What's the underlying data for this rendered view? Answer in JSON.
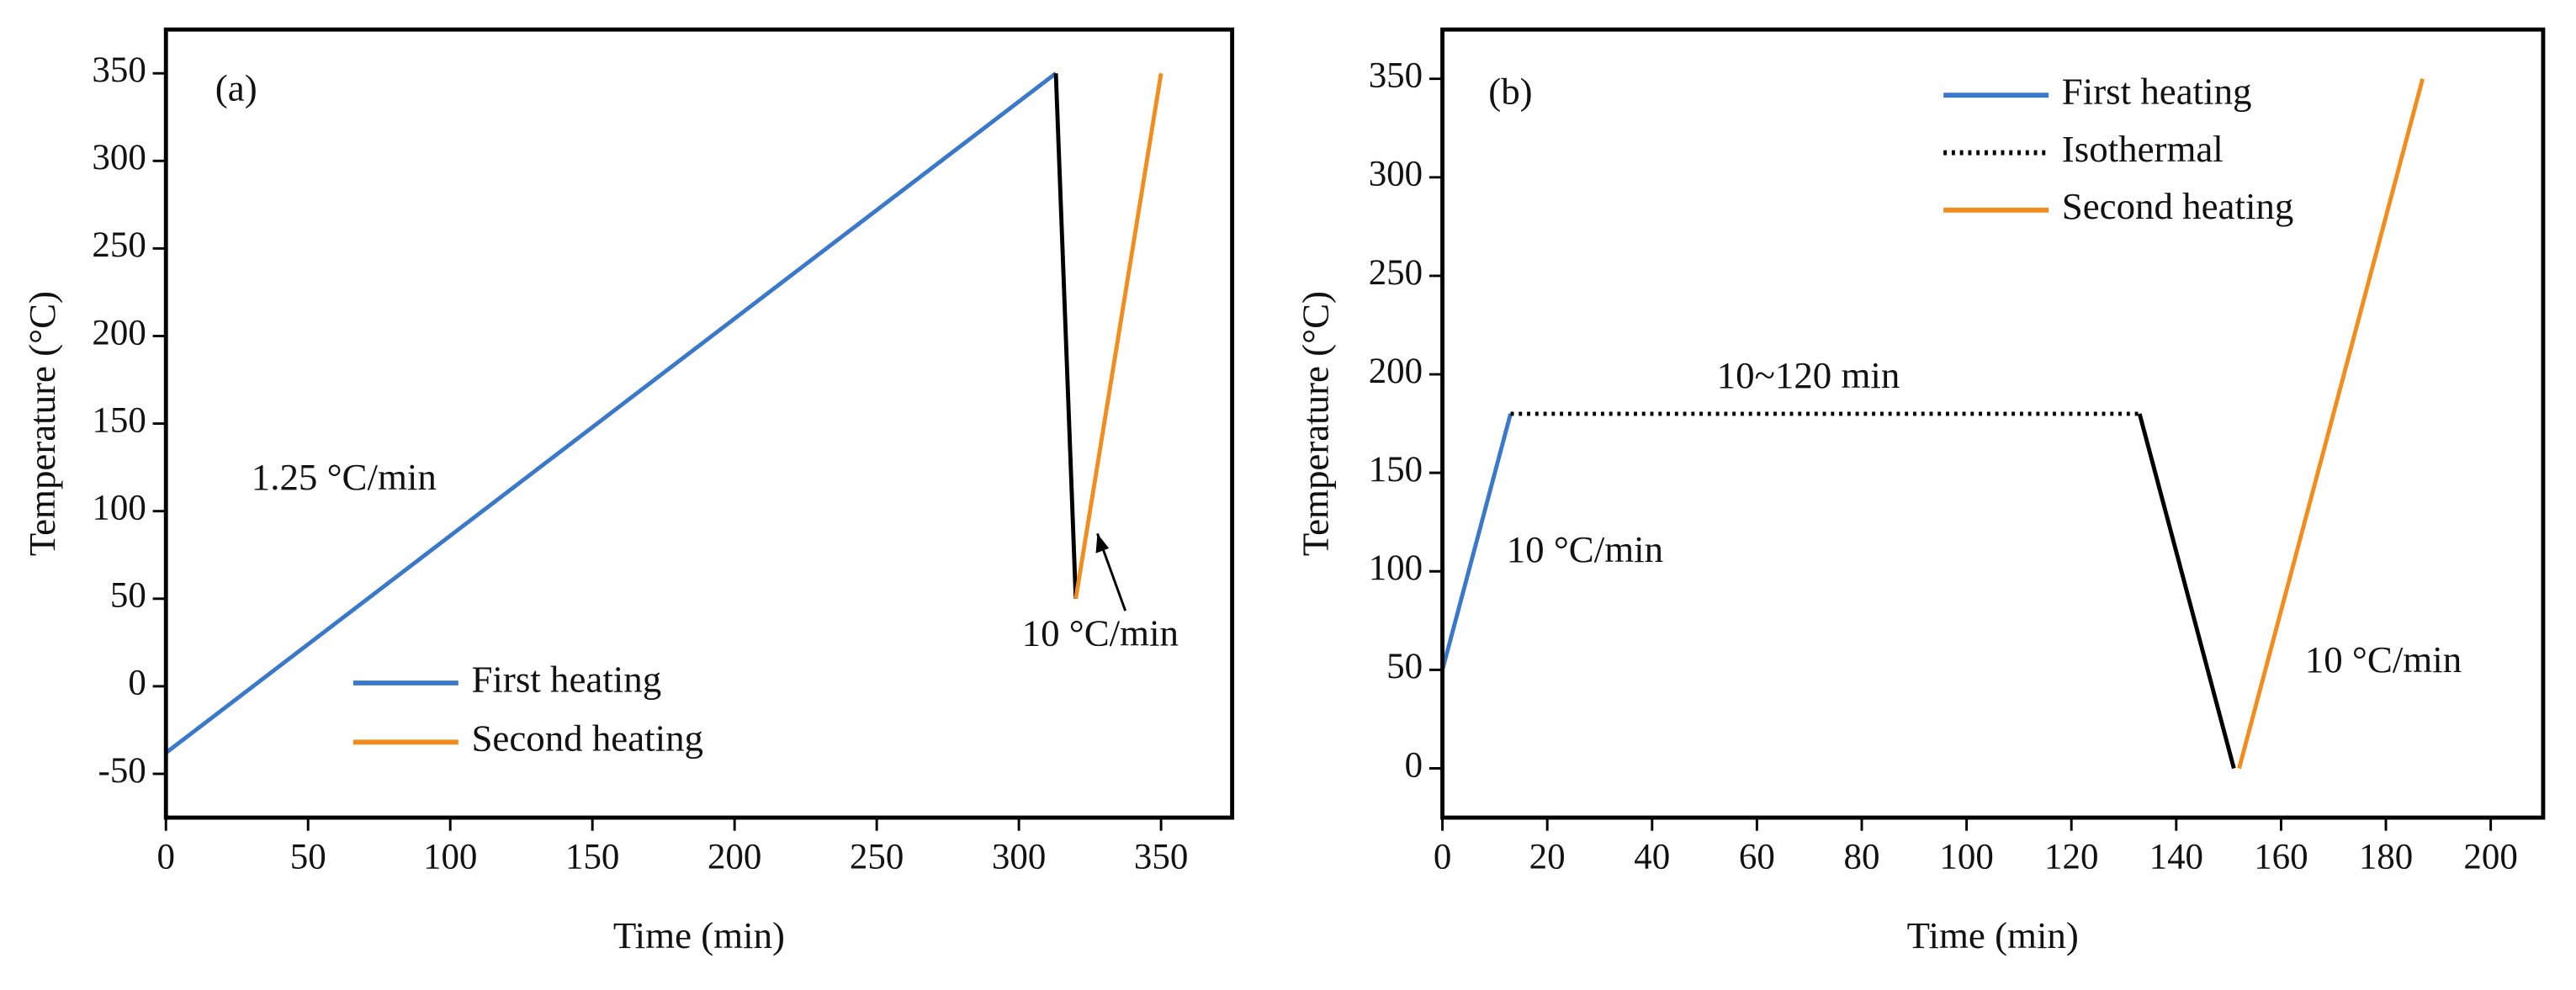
{
  "chart_data": [
    {
      "type": "line",
      "panel_label": "(a)",
      "x_label": "Time (min)",
      "y_label": "Temperature (°C)",
      "xlim": [
        0,
        375
      ],
      "xticks": [
        0,
        50,
        100,
        150,
        200,
        250,
        300,
        350
      ],
      "ylim": [
        -75,
        375
      ],
      "yticks": [
        -50,
        0,
        50,
        100,
        150,
        200,
        250,
        300,
        350
      ],
      "series": [
        {
          "name": "First heating",
          "color": "#3a78c9",
          "x": [
            0,
            313
          ],
          "values": [
            -38,
            350
          ]
        },
        {
          "color": "#000000",
          "x": [
            313,
            320
          ],
          "values": [
            350,
            50
          ]
        },
        {
          "name": "Second heating",
          "color": "#f28c1c",
          "x": [
            320,
            350
          ],
          "values": [
            50,
            350
          ]
        }
      ],
      "annotations": [
        "1.25 °C/min",
        "10 °C/min"
      ]
    },
    {
      "type": "line",
      "panel_label": "(b)",
      "x_label": "Time (min)",
      "y_label": "Temperature (°C)",
      "xlim": [
        0,
        210
      ],
      "xticks": [
        0,
        20,
        40,
        60,
        80,
        100,
        120,
        140,
        160,
        180,
        200
      ],
      "ylim": [
        -25,
        375
      ],
      "yticks": [
        0,
        50,
        100,
        150,
        200,
        250,
        300,
        350
      ],
      "series": [
        {
          "name": "First heating",
          "color": "#3a78c9",
          "x": [
            0,
            13
          ],
          "values": [
            50,
            180
          ]
        },
        {
          "name": "Isothermal",
          "color": "#000000",
          "dash": "dotted",
          "x": [
            13,
            133
          ],
          "values": [
            180,
            180
          ]
        },
        {
          "color": "#000000",
          "x": [
            133,
            151
          ],
          "values": [
            180,
            0
          ]
        },
        {
          "name": "Second heating",
          "color": "#f28c1c",
          "x": [
            152,
            187
          ],
          "values": [
            0,
            350
          ]
        }
      ],
      "annotations": [
        "10~120 min",
        "10 °C/min",
        "10 °C/min"
      ]
    }
  ]
}
